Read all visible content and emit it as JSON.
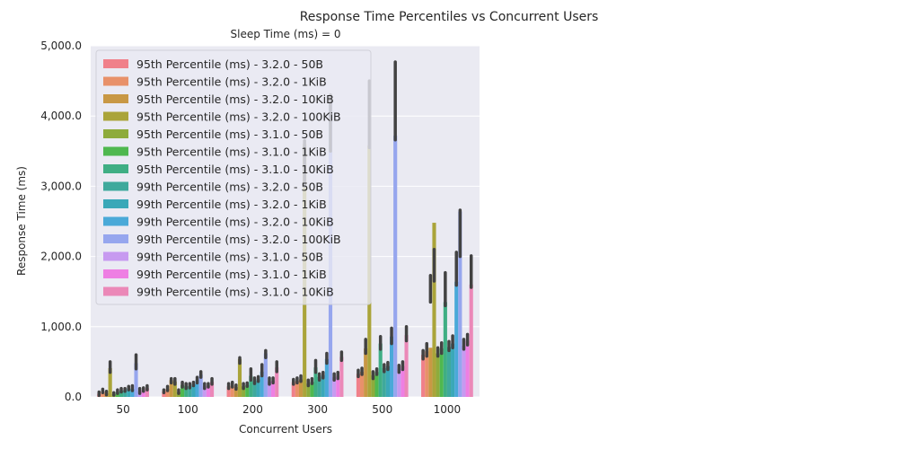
{
  "chart_data": {
    "type": "bar",
    "title": "Response Time Percentiles vs Concurrent Users",
    "subtitle": "Sleep Time (ms) = 0",
    "xlabel": "Concurrent Users",
    "ylabel": "Response Time (ms)",
    "ylim": [
      0,
      5000
    ],
    "yticks": [
      "0.0",
      "1,000.0",
      "2,000.0",
      "3,000.0",
      "4,000.0",
      "5,000.0"
    ],
    "ytick_values": [
      0,
      1000,
      2000,
      3000,
      4000,
      5000
    ],
    "grid": true,
    "legend_position": "top-left",
    "categories": [
      "50",
      "100",
      "200",
      "300",
      "500",
      "1000"
    ],
    "series": [
      {
        "name": "95th Percentile (ms) - 3.2.0 - 50B",
        "color": "#f0808a",
        "values": [
          45,
          80,
          150,
          210,
          330,
          600
        ]
      },
      {
        "name": "95th Percentile (ms) - 3.2.0 - 1KiB",
        "color": "#e8916a",
        "values": [
          75,
          115,
          160,
          230,
          360,
          650
        ]
      },
      {
        "name": "95th Percentile (ms) - 3.2.0 - 10KiB",
        "color": "#c89845",
        "values": [
          55,
          240,
          140,
          250,
          690,
          700
        ]
      },
      {
        "name": "95th Percentile (ms) - 3.2.0 - 100KiB",
        "color": "#aaa43a",
        "values": [
          410,
          220,
          540,
          3600,
          3580,
          2480
        ]
      },
      {
        "name": "95th Percentile (ms) - 3.1.0 - 50B",
        "color": "#8eab3c",
        "values": [
          40,
          70,
          150,
          190,
          310,
          620
        ]
      },
      {
        "name": "95th Percentile (ms) - 3.1.0 - 1KiB",
        "color": "#4fb84f",
        "values": [
          70,
          170,
          170,
          215,
          355,
          690
        ]
      },
      {
        "name": "95th Percentile (ms) - 3.1.0 - 10KiB",
        "color": "#3fae84",
        "values": [
          90,
          150,
          300,
          420,
          760,
          1350
        ]
      },
      {
        "name": "99th Percentile (ms) - 3.2.0 - 50B",
        "color": "#3fa99c",
        "values": [
          95,
          155,
          225,
          285,
          410,
          710
        ]
      },
      {
        "name": "99th Percentile (ms) - 3.2.0 - 1KiB",
        "color": "#3aa8b8",
        "values": [
          120,
          180,
          250,
          310,
          440,
          760
        ]
      },
      {
        "name": "99th Percentile (ms) - 3.2.0 - 10KiB",
        "color": "#4aa9d8",
        "values": [
          110,
          240,
          360,
          540,
          860,
          1640
        ]
      },
      {
        "name": "99th Percentile (ms) - 3.2.0 - 100KiB",
        "color": "#96a6ee",
        "values": [
          480,
          320,
          620,
          4200,
          3720,
          2640
        ]
      },
      {
        "name": "99th Percentile (ms) - 3.1.0 - 50B",
        "color": "#c79af0",
        "values": [
          80,
          150,
          220,
          280,
          400,
          730
        ]
      },
      {
        "name": "99th Percentile (ms) - 3.1.0 - 1KiB",
        "color": "#ee7fe3",
        "values": [
          100,
          160,
          230,
          300,
          440,
          800
        ]
      },
      {
        "name": "99th Percentile (ms) - 3.1.0 - 10KiB",
        "color": "#eb88b8",
        "values": [
          125,
          215,
          420,
          570,
          880,
          1600
        ]
      }
    ],
    "error_bars": [
      [
        [
          20,
          70
        ],
        [
          60,
          110
        ],
        [
          30,
          80
        ],
        [
          350,
          500
        ],
        [
          25,
          60
        ],
        [
          50,
          100
        ],
        [
          70,
          120
        ],
        [
          80,
          120
        ],
        [
          100,
          150
        ],
        [
          90,
          160
        ],
        [
          400,
          600
        ],
        [
          50,
          120
        ],
        [
          80,
          130
        ],
        [
          100,
          160
        ]
      ],
      [
        [
          60,
          100
        ],
        [
          90,
          150
        ],
        [
          200,
          260
        ],
        [
          180,
          260
        ],
        [
          50,
          100
        ],
        [
          140,
          210
        ],
        [
          120,
          190
        ],
        [
          130,
          190
        ],
        [
          160,
          210
        ],
        [
          200,
          280
        ],
        [
          280,
          360
        ],
        [
          120,
          190
        ],
        [
          140,
          190
        ],
        [
          180,
          260
        ]
      ],
      [
        [
          120,
          190
        ],
        [
          140,
          210
        ],
        [
          110,
          170
        ],
        [
          480,
          560
        ],
        [
          120,
          190
        ],
        [
          150,
          200
        ],
        [
          240,
          400
        ],
        [
          190,
          270
        ],
        [
          220,
          290
        ],
        [
          300,
          460
        ],
        [
          560,
          660
        ],
        [
          180,
          270
        ],
        [
          200,
          270
        ],
        [
          360,
          500
        ]
      ],
      [
        [
          180,
          250
        ],
        [
          200,
          270
        ],
        [
          220,
          300
        ],
        [
          3000,
          3650
        ],
        [
          160,
          240
        ],
        [
          190,
          260
        ],
        [
          350,
          520
        ],
        [
          240,
          330
        ],
        [
          270,
          350
        ],
        [
          480,
          620
        ],
        [
          3500,
          4300
        ],
        [
          240,
          330
        ],
        [
          260,
          350
        ],
        [
          520,
          640
        ]
      ],
      [
        [
          290,
          380
        ],
        [
          320,
          410
        ],
        [
          620,
          820
        ],
        [
          3550,
          4500
        ],
        [
          260,
          360
        ],
        [
          320,
          400
        ],
        [
          680,
          860
        ],
        [
          360,
          460
        ],
        [
          390,
          490
        ],
        [
          760,
          980
        ],
        [
          3660,
          4770
        ],
        [
          350,
          450
        ],
        [
          390,
          500
        ],
        [
          800,
          1000
        ]
      ],
      [
        [
          540,
          660
        ],
        [
          580,
          760
        ],
        [
          1350,
          1730
        ],
        [
          1650,
          2100
        ],
        [
          580,
          700
        ],
        [
          620,
          770
        ],
        [
          1300,
          1770
        ],
        [
          660,
          790
        ],
        [
          700,
          870
        ],
        [
          1590,
          2060
        ],
        [
          2000,
          2660
        ],
        [
          680,
          820
        ],
        [
          740,
          890
        ],
        [
          1560,
          2010
        ]
      ]
    ]
  }
}
